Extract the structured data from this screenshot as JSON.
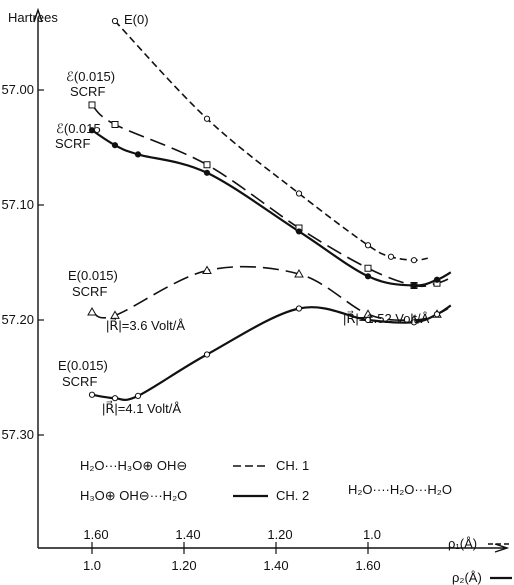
{
  "chart_data": {
    "type": "line",
    "ylabel": "Hartrees",
    "y_axis": {
      "ticks": [
        57.0,
        57.1,
        57.2,
        57.3
      ],
      "tick_labels": [
        "57.00",
        "57.10",
        "57.20",
        "57.30"
      ],
      "inverted": true
    },
    "x_axis_top": {
      "label": "ρ₁(Å)",
      "ticks": [
        1.6,
        1.4,
        1.2,
        1.0
      ],
      "tick_labels": [
        "1.60",
        "1.40",
        "1.20",
        "1.0"
      ]
    },
    "x_axis_bottom": {
      "label": "ρ₂(Å)",
      "ticks": [
        1.0,
        1.2,
        1.4,
        1.6
      ],
      "tick_labels": [
        "1.0",
        "1.20",
        "1.40",
        "1.60"
      ]
    },
    "legend": [
      {
        "text": "H₂O···H₃O⊕ OH⊖",
        "channel": "CH. 1",
        "style": "dashed"
      },
      {
        "text": "H₃O⊕ OH⊖···H₂O",
        "channel": "CH. 2",
        "style": "solid"
      }
    ],
    "note": "H₂O····H₂O···H₂O",
    "series": [
      {
        "name": "E(0)",
        "style": "short-dash",
        "marker": "open-circle",
        "x": [
          1.05,
          1.25,
          1.45,
          1.6,
          1.65,
          1.7
        ],
        "y": [
          56.94,
          57.025,
          57.09,
          57.135,
          57.145,
          57.148
        ]
      },
      {
        "name": "ℰ(0.015) SCRF",
        "style": "long-dash",
        "marker": "open-square",
        "x": [
          1.0,
          1.05,
          1.25,
          1.45,
          1.6,
          1.7,
          1.75
        ],
        "y": [
          57.013,
          57.03,
          57.065,
          57.12,
          57.155,
          57.17,
          57.168
        ]
      },
      {
        "name": "ℰ(0.015) SCRF",
        "style": "solid",
        "marker": "filled-circle",
        "x": [
          1.0,
          1.05,
          1.1,
          1.25,
          1.45,
          1.6,
          1.7,
          1.75
        ],
        "y": [
          57.035,
          57.048,
          57.056,
          57.072,
          57.123,
          57.162,
          57.17,
          57.165
        ]
      },
      {
        "name": "E(0.015) SCRF",
        "style": "long-dash",
        "marker": "open-triangle",
        "x": [
          1.0,
          1.05,
          1.25,
          1.45,
          1.6,
          1.7,
          1.75
        ],
        "y": [
          57.193,
          57.196,
          57.157,
          57.16,
          57.195,
          57.2,
          57.195
        ]
      },
      {
        "name": "E(0.015) SCRF",
        "style": "solid",
        "marker": "open-circle",
        "x": [
          1.0,
          1.05,
          1.1,
          1.25,
          1.45,
          1.6,
          1.7,
          1.75
        ],
        "y": [
          57.265,
          57.268,
          57.266,
          57.23,
          57.19,
          57.2,
          57.202,
          57.195
        ]
      }
    ],
    "annotations": [
      {
        "text": "E(0)"
      },
      {
        "text": "ℰ(0.015)"
      },
      {
        "text": "SCRF"
      },
      {
        "text": "ℰ(0.015"
      },
      {
        "text": "SCRF"
      },
      {
        "text": "E(0.015)"
      },
      {
        "text": "SCRF"
      },
      {
        "text": "|R⃗|=3.6 Volt/Å"
      },
      {
        "text": "|R⃗|=1.52 Volt/Å"
      },
      {
        "text": "E(0.015)"
      },
      {
        "text": "SCRF"
      },
      {
        "text": "|R⃗|=4.1 Volt/Å"
      }
    ]
  }
}
